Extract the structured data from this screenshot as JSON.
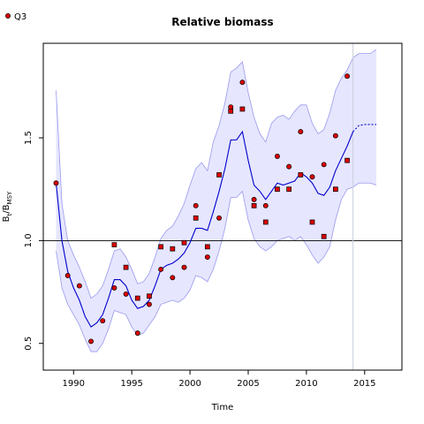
{
  "chart_data": {
    "type": "line",
    "title": "Relative biomass",
    "xlabel": "Time",
    "ylabel": "B",
    "ylabel_sub1": "t",
    "ylabel_sub2": "MSY",
    "xlim": [
      1987.4,
      2018.2
    ],
    "ylim": [
      0.37,
      1.96
    ],
    "xticks": [
      1990,
      1995,
      2000,
      2005,
      2010,
      2015
    ],
    "yticks": [
      0.5,
      1.0,
      1.5
    ],
    "ytick_labels": [
      "0.5",
      "1.0",
      "1.5"
    ],
    "reference_line_y": 1.0,
    "vertical_line_x": 2014.0,
    "legend": {
      "label": "Q3",
      "position": "top-left"
    },
    "colors": {
      "estimate": "#0000cc",
      "band_fill": "#e6e6ff",
      "band_edge": "#9999ee",
      "point_fill": "#dd0000",
      "vline": "#c8d0dc"
    },
    "series": [
      {
        "role": "estimate",
        "x": [
          1988.5,
          1989,
          1989.5,
          1990,
          1990.5,
          1991,
          1991.5,
          1992,
          1992.5,
          1993,
          1993.5,
          1994,
          1994.5,
          1995,
          1995.5,
          1996,
          1996.5,
          1997,
          1997.5,
          1998,
          1998.5,
          1999,
          1999.5,
          2000,
          2000.5,
          2001,
          2001.5,
          2002,
          2002.5,
          2003,
          2003.5,
          2004,
          2004.5,
          2005,
          2005.5,
          2006,
          2006.5,
          2007,
          2007.5,
          2008,
          2008.5,
          2009,
          2009.5,
          2010,
          2010.5,
          2011,
          2011.5,
          2012,
          2012.5,
          2013,
          2013.5,
          2014
        ],
        "y": [
          1.28,
          1.0,
          0.85,
          0.77,
          0.71,
          0.63,
          0.58,
          0.6,
          0.64,
          0.72,
          0.81,
          0.81,
          0.78,
          0.71,
          0.67,
          0.68,
          0.71,
          0.78,
          0.86,
          0.88,
          0.89,
          0.91,
          0.94,
          0.99,
          1.06,
          1.06,
          1.05,
          1.14,
          1.24,
          1.35,
          1.49,
          1.49,
          1.53,
          1.39,
          1.27,
          1.24,
          1.2,
          1.24,
          1.28,
          1.27,
          1.28,
          1.29,
          1.33,
          1.31,
          1.28,
          1.23,
          1.22,
          1.26,
          1.34,
          1.4,
          1.46,
          1.53
        ]
      },
      {
        "role": "estimate_projection",
        "x": [
          2014,
          2014.5,
          2015,
          2015.5,
          2016
        ],
        "y": [
          1.53,
          1.56,
          1.565,
          1.565,
          1.565
        ]
      },
      {
        "role": "upper_bound",
        "x": [
          1988.5,
          1989,
          1989.5,
          1990,
          1990.5,
          1991,
          1991.5,
          1992,
          1992.5,
          1993,
          1993.5,
          1994,
          1994.5,
          1995,
          1995.5,
          1996,
          1996.5,
          1997,
          1997.5,
          1998,
          1998.5,
          1999,
          1999.5,
          2000,
          2000.5,
          2001,
          2001.5,
          2002,
          2002.5,
          2003,
          2003.5,
          2004,
          2004.5,
          2005,
          2005.5,
          2006,
          2006.5,
          2007,
          2007.5,
          2008,
          2008.5,
          2009,
          2009.5,
          2010,
          2010.5,
          2011,
          2011.5,
          2012,
          2012.5,
          2013,
          2013.5,
          2014,
          2014.5,
          2015,
          2015.5,
          2016
        ],
        "y": [
          1.73,
          1.18,
          1.0,
          0.93,
          0.87,
          0.8,
          0.72,
          0.74,
          0.78,
          0.86,
          0.95,
          0.96,
          0.92,
          0.86,
          0.79,
          0.8,
          0.84,
          0.92,
          1.01,
          1.05,
          1.07,
          1.12,
          1.18,
          1.27,
          1.35,
          1.38,
          1.34,
          1.48,
          1.56,
          1.67,
          1.82,
          1.84,
          1.87,
          1.72,
          1.6,
          1.52,
          1.48,
          1.57,
          1.6,
          1.61,
          1.59,
          1.63,
          1.66,
          1.66,
          1.57,
          1.52,
          1.54,
          1.62,
          1.73,
          1.79,
          1.83,
          1.89,
          1.91,
          1.91,
          1.91,
          1.93
        ]
      },
      {
        "role": "lower_bound",
        "x": [
          1988.5,
          1989,
          1989.5,
          1990,
          1990.5,
          1991,
          1991.5,
          1992,
          1992.5,
          1993,
          1993.5,
          1994,
          1994.5,
          1995,
          1995.5,
          1996,
          1996.5,
          1997,
          1997.5,
          1998,
          1998.5,
          1999,
          1999.5,
          2000,
          2000.5,
          2001,
          2001.5,
          2002,
          2002.5,
          2003,
          2003.5,
          2004,
          2004.5,
          2005,
          2005.5,
          2006,
          2006.5,
          2007,
          2007.5,
          2008,
          2008.5,
          2009,
          2009.5,
          2010,
          2010.5,
          2011,
          2011.5,
          2012,
          2012.5,
          2013,
          2013.5,
          2014,
          2014.5,
          2015,
          2015.5,
          2016
        ],
        "y": [
          0.95,
          0.77,
          0.69,
          0.64,
          0.59,
          0.52,
          0.46,
          0.46,
          0.5,
          0.57,
          0.66,
          0.65,
          0.64,
          0.58,
          0.54,
          0.55,
          0.59,
          0.63,
          0.69,
          0.7,
          0.71,
          0.7,
          0.72,
          0.76,
          0.83,
          0.82,
          0.8,
          0.86,
          0.95,
          1.06,
          1.21,
          1.21,
          1.24,
          1.1,
          1.01,
          0.97,
          0.95,
          0.97,
          1.0,
          1.01,
          1.02,
          1.0,
          1.02,
          0.98,
          0.93,
          0.89,
          0.92,
          0.97,
          1.1,
          1.2,
          1.25,
          1.26,
          1.28,
          1.28,
          1.28,
          1.27
        ]
      }
    ],
    "observations": {
      "circles": {
        "x": [
          1988.5,
          1989.5,
          1990.5,
          1991.5,
          1992.5,
          1993.5,
          1994.5,
          1995.5,
          1996.5,
          1997.5,
          1998.5,
          1999.5,
          2000.5,
          2001.5,
          2002.5,
          2003.5,
          2004.5,
          2005.5,
          2006.5,
          2007.5,
          2008.5,
          2009.5,
          2010.5,
          2011.5,
          2012.5,
          2013.5
        ],
        "y": [
          1.28,
          0.83,
          0.78,
          0.51,
          0.61,
          0.77,
          0.74,
          0.55,
          0.69,
          0.86,
          0.82,
          0.87,
          1.17,
          0.92,
          1.11,
          1.65,
          1.77,
          1.2,
          1.17,
          1.41,
          1.36,
          1.53,
          1.31,
          1.37,
          1.51,
          1.8
        ]
      },
      "squares": {
        "x": [
          1993.5,
          1994.5,
          1995.5,
          1996.5,
          1997.5,
          1998.5,
          1999.5,
          2000.5,
          2001.5,
          2002.5,
          2003.5,
          2004.5,
          2005.5,
          2006.5,
          2007.5,
          2008.5,
          2009.5,
          2010.5,
          2011.5,
          2012.5,
          2013.5
        ],
        "y": [
          0.98,
          0.87,
          0.72,
          0.73,
          0.97,
          0.96,
          0.99,
          1.11,
          0.97,
          1.32,
          1.63,
          1.64,
          1.17,
          1.09,
          1.25,
          1.25,
          1.32,
          1.09,
          1.02,
          1.25,
          1.39
        ]
      }
    }
  }
}
